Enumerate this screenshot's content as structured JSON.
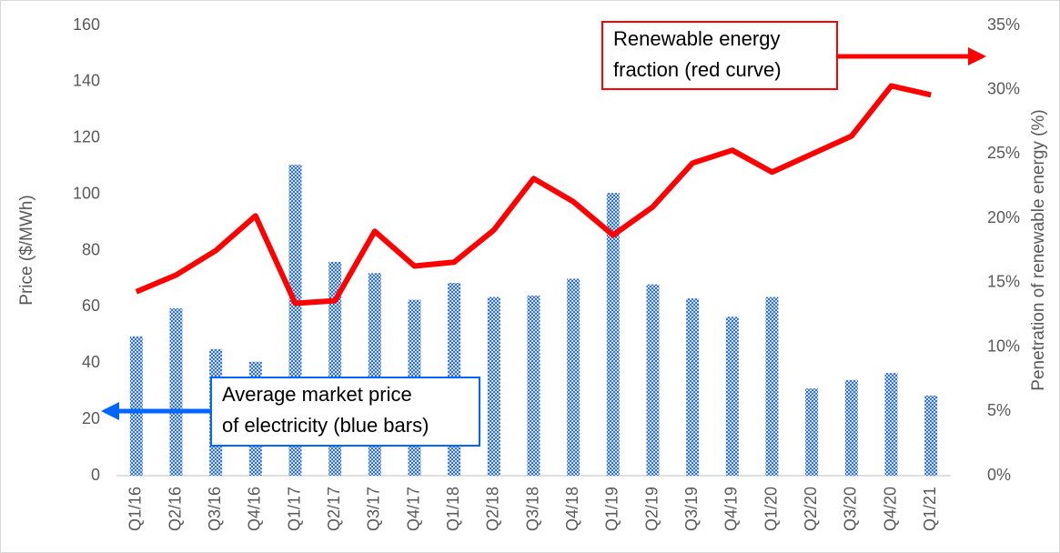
{
  "chart_data": {
    "type": "bar",
    "categories": [
      "Q1/16",
      "Q2/16",
      "Q3/16",
      "Q4/16",
      "Q1/17",
      "Q2/17",
      "Q3/17",
      "Q4/17",
      "Q1/18",
      "Q2/18",
      "Q3/18",
      "Q4/18",
      "Q1/19",
      "Q2/19",
      "Q3/19",
      "Q4/19",
      "Q1/20",
      "Q2/20",
      "Q3/20",
      "Q4/20",
      "Q1/21"
    ],
    "series": [
      {
        "type": "bar",
        "color": "#2f6fd6",
        "values": [
          49.5,
          59.5,
          45,
          40.5,
          110.5,
          76,
          72,
          62.5,
          68.5,
          63.5,
          64,
          70,
          100.5,
          68,
          63,
          56.5,
          63.5,
          31,
          34,
          36.5,
          28.5
        ]
      },
      {
        "type": "line",
        "axis": "y2",
        "color": "#ff0000",
        "values": [
          14.3,
          15.6,
          17.5,
          20.2,
          13.4,
          13.6,
          19.0,
          16.3,
          16.6,
          19.1,
          23.1,
          21.3,
          18.7,
          20.9,
          24.3,
          25.3,
          23.6,
          25.0,
          26.4,
          30.3,
          29.6
        ]
      }
    ],
    "y_label": "Price ($/MWh)",
    "y2_label": "Penetration of renewable energy (%)",
    "ylim": [
      0,
      160
    ],
    "yticks": [
      0,
      20,
      40,
      60,
      80,
      100,
      120,
      140,
      160
    ],
    "y2lim": [
      0,
      35
    ],
    "y2ticks": [
      {
        "value": 0,
        "label": "0%"
      },
      {
        "value": 5,
        "label": "5%"
      },
      {
        "value": 10,
        "label": "10%"
      },
      {
        "value": 15,
        "label": "15%"
      },
      {
        "value": 20,
        "label": "20%"
      },
      {
        "value": 25,
        "label": "25%"
      },
      {
        "value": 30,
        "label": "30%"
      },
      {
        "value": 35,
        "label": "35%"
      }
    ],
    "grid": false,
    "annotations": [
      {
        "lines": [
          "Renewable energy",
          "fraction (red curve)"
        ],
        "color": "#ff0000"
      },
      {
        "lines": [
          "Average market price",
          "of electricity (blue bars)"
        ],
        "color": "#0066ff"
      }
    ]
  }
}
